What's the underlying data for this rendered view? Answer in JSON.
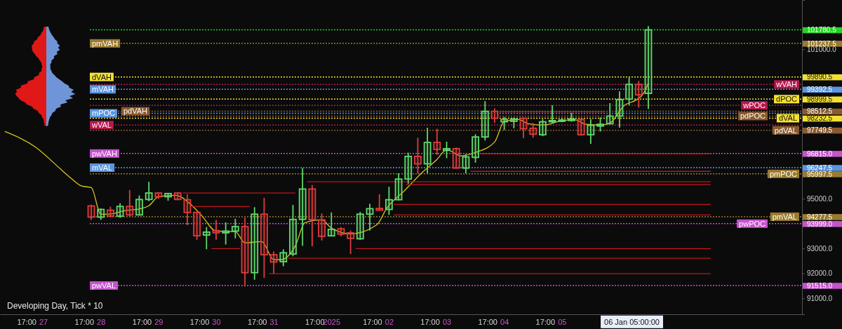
{
  "chart_data": {
    "type": "candlestick",
    "xlim": [
      "2024-12-26T06:00",
      "2025-01-09T04:00"
    ],
    "ylim": [
      90360,
      102980
    ],
    "yticks": [
      {
        "value": 91000,
        "label": "91000.0"
      },
      {
        "value": 91515.0,
        "label": "91515.0"
      },
      {
        "value": 92000,
        "label": "92000.0"
      },
      {
        "value": 93000,
        "label": "93000.0"
      },
      {
        "value": 93999.0,
        "label": "93999.0"
      },
      {
        "value": 94277.5,
        "label": "94277.5"
      },
      {
        "value": 95000,
        "label": "95000.0"
      },
      {
        "value": 95997.5,
        "label": "95997.5"
      },
      {
        "value": 96247.5,
        "label": "96247.5"
      },
      {
        "value": 96815.0,
        "label": "96815.0"
      },
      {
        "value": 97749.5,
        "label": "97749.5"
      },
      {
        "value": 98232.5,
        "label": "98232.5"
      },
      {
        "value": 98512.5,
        "label": "98512.5"
      },
      {
        "value": 98999.5,
        "label": "98999.5"
      },
      {
        "value": 99392.5,
        "label": "99392.5"
      },
      {
        "value": 99890.5,
        "label": "99890.5"
      },
      {
        "value": 101000,
        "label": "101000.0"
      },
      {
        "value": 101237.5,
        "label": "101237.5"
      },
      {
        "value": 101780.5,
        "label": "101780.5"
      }
    ],
    "xticks": [
      {
        "value": "2024-12-26T17:00",
        "label": "17:00"
      },
      {
        "value": "2024-12-27T00:00",
        "label": "27"
      },
      {
        "value": "2024-12-27T17:00",
        "label": "17:00"
      },
      {
        "value": "2024-12-28T00:00",
        "label": "28"
      },
      {
        "value": "2024-12-28T17:00",
        "label": "17:00"
      },
      {
        "value": "2024-12-29T00:00",
        "label": "29"
      },
      {
        "value": "2024-12-29T17:00",
        "label": "17:00"
      },
      {
        "value": "2024-12-30T00:00",
        "label": "30"
      },
      {
        "value": "2024-12-30T17:00",
        "label": "17:00"
      },
      {
        "value": "2024-12-31T00:00",
        "label": "31"
      },
      {
        "value": "2024-12-31T17:00",
        "label": "17:00"
      },
      {
        "value": "2025-01-01T00:00",
        "label": "2025"
      },
      {
        "value": "2025-01-01T17:00",
        "label": "17:00"
      },
      {
        "value": "2025-01-02T00:00",
        "label": "02"
      },
      {
        "value": "2025-01-02T17:00",
        "label": "17:00"
      },
      {
        "value": "2025-01-03T00:00",
        "label": "03"
      },
      {
        "value": "2025-01-03T17:00",
        "label": "17:00"
      },
      {
        "value": "2025-01-04T00:00",
        "label": "04"
      },
      {
        "value": "2025-01-04T17:00",
        "label": "17:00"
      },
      {
        "value": "2025-01-05T00:00",
        "label": "05"
      },
      {
        "value": "2025-01-06T05:00",
        "label": "06 Jan 05:00:00"
      }
    ],
    "x": [
      "2024-12-27T20:00",
      "2024-12-28T00:00",
      "2024-12-28T04:00",
      "2024-12-28T08:00",
      "2024-12-28T12:00",
      "2024-12-28T16:00",
      "2024-12-28T20:00",
      "2024-12-29T00:00",
      "2024-12-29T04:00",
      "2024-12-29T08:00",
      "2024-12-29T12:00",
      "2024-12-29T16:00",
      "2024-12-29T20:00",
      "2024-12-30T00:00",
      "2024-12-30T04:00",
      "2024-12-30T08:00",
      "2024-12-30T12:00",
      "2024-12-30T16:00",
      "2024-12-30T20:00",
      "2024-12-31T00:00",
      "2024-12-31T04:00",
      "2024-12-31T08:00",
      "2024-12-31T12:00",
      "2024-12-31T16:00",
      "2024-12-31T20:00",
      "2025-01-01T00:00",
      "2025-01-01T04:00",
      "2025-01-01T08:00",
      "2025-01-01T12:00",
      "2025-01-01T16:00",
      "2025-01-01T20:00",
      "2025-01-02T00:00",
      "2025-01-02T04:00",
      "2025-01-02T08:00",
      "2025-01-02T12:00",
      "2025-01-02T16:00",
      "2025-01-02T20:00",
      "2025-01-03T00:00",
      "2025-01-03T04:00",
      "2025-01-03T08:00",
      "2025-01-03T12:00",
      "2025-01-03T16:00",
      "2025-01-03T20:00",
      "2025-01-04T00:00",
      "2025-01-04T04:00",
      "2025-01-04T08:00",
      "2025-01-04T12:00",
      "2025-01-04T16:00",
      "2025-01-04T20:00",
      "2025-01-05T00:00",
      "2025-01-05T04:00",
      "2025-01-05T08:00",
      "2025-01-05T12:00",
      "2025-01-05T16:00",
      "2025-01-05T20:00",
      "2025-01-06T00:00",
      "2025-01-06T04:00",
      "2025-01-06T08:00",
      "2025-01-06T12:00"
    ],
    "ohlc": [
      [
        94710,
        94760,
        94150,
        94260
      ],
      [
        94260,
        94610,
        94150,
        94570
      ],
      [
        94540,
        94680,
        94260,
        94300
      ],
      [
        94300,
        94820,
        94240,
        94690
      ],
      [
        94690,
        95350,
        94290,
        94350
      ],
      [
        94350,
        95130,
        94330,
        94970
      ],
      [
        94970,
        95680,
        94900,
        95230
      ],
      [
        95230,
        95250,
        94990,
        95080
      ],
      [
        95080,
        95230,
        94920,
        95210
      ],
      [
        95230,
        95250,
        94940,
        94970
      ],
      [
        94960,
        95180,
        93940,
        94450
      ],
      [
        94450,
        94470,
        93350,
        93510
      ],
      [
        93540,
        93860,
        92970,
        93660
      ],
      [
        93720,
        94150,
        93350,
        93630
      ],
      [
        93630,
        94050,
        93160,
        93700
      ],
      [
        93700,
        94190,
        93410,
        93880
      ],
      [
        93880,
        94240,
        91470,
        92030
      ],
      [
        92030,
        94660,
        91750,
        94380
      ],
      [
        94380,
        95040,
        91820,
        92750
      ],
      [
        92750,
        92880,
        91990,
        92460
      ],
      [
        92470,
        92970,
        92290,
        92830
      ],
      [
        92780,
        94750,
        92690,
        94170
      ],
      [
        94170,
        96230,
        93110,
        95390
      ],
      [
        95390,
        95550,
        93090,
        94160
      ],
      [
        94150,
        94410,
        93320,
        93490
      ],
      [
        93510,
        94450,
        93490,
        93770
      ],
      [
        93790,
        93860,
        93490,
        93580
      ],
      [
        93630,
        93720,
        92780,
        93410
      ],
      [
        93390,
        94470,
        93350,
        94380
      ],
      [
        94380,
        94800,
        93720,
        94600
      ],
      [
        94610,
        95180,
        94520,
        94540
      ],
      [
        94570,
        95480,
        94350,
        94960
      ],
      [
        94960,
        96020,
        94940,
        95790
      ],
      [
        95790,
        96850,
        95600,
        96700
      ],
      [
        96700,
        97450,
        96020,
        96400
      ],
      [
        96400,
        97850,
        96020,
        97260
      ],
      [
        97260,
        97810,
        96760,
        96980
      ],
      [
        96940,
        97290,
        96630,
        97010
      ],
      [
        97010,
        97060,
        96210,
        96230
      ],
      [
        96230,
        96790,
        96020,
        96680
      ],
      [
        96660,
        97590,
        96450,
        97480
      ],
      [
        97480,
        98920,
        97340,
        98510
      ],
      [
        98510,
        98630,
        98040,
        98230
      ],
      [
        98090,
        98280,
        97760,
        98180
      ],
      [
        98110,
        98260,
        97830,
        98200
      ],
      [
        98230,
        98260,
        97430,
        97810
      ],
      [
        97830,
        98040,
        97450,
        97590
      ],
      [
        97570,
        98200,
        97510,
        98090
      ],
      [
        98090,
        98750,
        98040,
        98140
      ],
      [
        98110,
        98230,
        98070,
        98160
      ],
      [
        98140,
        98450,
        98090,
        98200
      ],
      [
        98180,
        98230,
        97530,
        97570
      ],
      [
        97570,
        98200,
        97200,
        97950
      ],
      [
        97920,
        98260,
        97700,
        97990
      ],
      [
        98010,
        98840,
        97990,
        98320
      ],
      [
        98320,
        99310,
        97850,
        98980
      ],
      [
        99000,
        99870,
        98750,
        99590
      ],
      [
        99590,
        99730,
        98660,
        99170
      ],
      [
        99230,
        101930,
        98610,
        101780
      ]
    ],
    "colors": [
      "#e23b3b",
      "#5fd96b",
      "#e23b3b",
      "#5fd96b",
      "#e23b3b",
      "#5fd96b",
      "#5fd96b",
      "#e23b3b",
      "#5fd96b",
      "#e23b3b",
      "#e23b3b",
      "#e23b3b",
      "#5fd96b",
      "#e23b3b",
      "#5fd96b",
      "#5fd96b",
      "#e23b3b",
      "#5fd96b",
      "#e23b3b",
      "#e23b3b",
      "#5fd96b",
      "#5fd96b",
      "#5fd96b",
      "#e23b3b",
      "#e23b3b",
      "#5fd96b",
      "#e23b3b",
      "#e23b3b",
      "#5fd96b",
      "#5fd96b",
      "#e23b3b",
      "#5fd96b",
      "#5fd96b",
      "#5fd96b",
      "#e23b3b",
      "#5fd96b",
      "#e23b3b",
      "#5fd96b",
      "#e23b3b",
      "#5fd96b",
      "#5fd96b",
      "#5fd96b",
      "#e23b3b",
      "#5fd96b",
      "#5fd96b",
      "#e23b3b",
      "#e23b3b",
      "#5fd96b",
      "#5fd96b",
      "#5fd96b",
      "#5fd96b",
      "#e23b3b",
      "#5fd96b",
      "#5fd96b",
      "#5fd96b",
      "#5fd96b",
      "#5fd96b",
      "#e23b3b",
      "#5fd96b"
    ],
    "series": [
      {
        "type": "line",
        "color": "#d6c41c",
        "x": [
          "2024-12-26T08:00",
          "2024-12-26T21:00",
          "2024-12-27T07:00",
          "2024-12-27T11:00",
          "2024-12-27T16:00",
          "2024-12-27T20:00",
          "2024-12-28T00:00",
          "2024-12-28T03:00",
          "2024-12-28T10:00",
          "2024-12-28T17:00",
          "2024-12-28T20:00",
          "2024-12-29T00:00",
          "2024-12-29T07:00",
          "2024-12-29T14:00",
          "2024-12-29T18:00",
          "2024-12-30T00:00",
          "2024-12-30T08:00",
          "2024-12-30T12:00",
          "2024-12-30T19:00",
          "2024-12-31T00:00",
          "2024-12-31T03:00",
          "2024-12-31T09:00",
          "2024-12-31T13:00",
          "2024-12-31T20:00",
          "2025-01-01T00:00",
          "2025-01-01T08:00",
          "2025-01-01T19:00",
          "2025-01-01T23:00",
          "2025-01-02T06:00",
          "2025-01-02T14:00",
          "2025-01-02T20:00",
          "2025-01-03T00:00",
          "2025-01-03T06:00",
          "2025-01-03T12:00",
          "2025-01-03T20:00",
          "2025-01-04T00:00",
          "2025-01-04T06:00",
          "2025-01-04T10:00",
          "2025-01-04T16:00",
          "2025-01-05T00:00",
          "2025-01-05T05:00",
          "2025-01-05T10:00",
          "2025-01-05T16:00",
          "2025-01-05T20:00",
          "2025-01-06T02:00",
          "2025-01-06T07:00",
          "2025-01-06T10:00",
          "2025-01-06T12:00"
        ],
        "values": [
          97700,
          97060,
          96210,
          95870,
          95510,
          95450,
          94380,
          94380,
          94520,
          94610,
          94720,
          95080,
          95140,
          94720,
          94320,
          93700,
          93680,
          93230,
          93280,
          92550,
          92550,
          93110,
          94040,
          94150,
          93820,
          93590,
          93960,
          94610,
          95280,
          96070,
          96580,
          96970,
          96720,
          96860,
          97280,
          98100,
          98180,
          98010,
          97960,
          98130,
          98180,
          97990,
          97960,
          98040,
          98750,
          98970,
          99230,
          99650
        ]
      },
      {
        "type": "line",
        "color": "#c0141c",
        "x": [
          "2025-01-03T22:00",
          "2025-01-05T18:00"
        ],
        "values": [
          98490,
          98490
        ]
      },
      {
        "type": "line",
        "color": "#c0141c",
        "x": [
          "2025-01-03T14:00",
          "2025-01-07T14:00"
        ],
        "values": [
          96800,
          96800
        ]
      },
      {
        "type": "line",
        "color": "#c0141c",
        "x": [
          "2025-01-03T10:00",
          "2025-01-07T14:00"
        ],
        "values": [
          96100,
          96100
        ]
      },
      {
        "type": "line",
        "color": "#c0141c",
        "x": [
          "2024-12-31T14:00",
          "2025-01-07T14:00"
        ],
        "values": [
          95680,
          95680
        ]
      },
      {
        "type": "line",
        "color": "#c0141c",
        "x": [
          "2025-01-02T07:00",
          "2025-01-07T14:00"
        ],
        "values": [
          95560,
          95560
        ]
      },
      {
        "type": "line",
        "color": "#c0141c",
        "x": [
          "2024-12-29T10:00",
          "2024-12-31T09:00"
        ],
        "values": [
          95230,
          95230
        ]
      },
      {
        "type": "line",
        "color": "#c0141c",
        "x": [
          "2025-01-02T02:00",
          "2025-01-07T14:00"
        ],
        "values": [
          94770,
          94770
        ]
      },
      {
        "type": "line",
        "color": "#c0141c",
        "x": [
          "2024-12-29T14:00",
          "2024-12-30T14:00"
        ],
        "values": [
          94690,
          94690
        ]
      },
      {
        "type": "line",
        "color": "#c0141c",
        "x": [
          "2025-01-02T02:00",
          "2025-01-07T14:00"
        ],
        "values": [
          94350,
          94350
        ]
      },
      {
        "type": "line",
        "color": "#c0141c",
        "x": [
          "2024-12-29T22:00",
          "2024-12-30T10:00"
        ],
        "values": [
          93000,
          93000
        ]
      },
      {
        "type": "line",
        "color": "#c0141c",
        "x": [
          "2025-01-01T10:00",
          "2025-01-07T14:00"
        ],
        "values": [
          93000,
          93000
        ]
      },
      {
        "type": "line",
        "color": "#c0141c",
        "x": [
          "2024-12-31T06:00",
          "2025-01-07T14:00"
        ],
        "values": [
          92610,
          92610
        ]
      },
      {
        "type": "line",
        "color": "#c0141c",
        "x": [
          "2024-12-30T22:00",
          "2025-01-07T14:00"
        ],
        "values": [
          91990,
          91990
        ]
      }
    ],
    "ref_lines": [
      {
        "axis": "y",
        "value": 101780.5,
        "label": null,
        "color": "#22d422",
        "line_style": "dotted"
      },
      {
        "axis": "y",
        "value": 101237.5,
        "label": "pmVAH",
        "color": "#9a7b2e",
        "line_style": "dotted"
      },
      {
        "axis": "y",
        "value": 99890.5,
        "label": "dVAH",
        "color": "#f2e033",
        "line_style": "dotted"
      },
      {
        "axis": "y",
        "value": 99392.5,
        "label": "mVAH",
        "color": "#5b95df",
        "line_style": "dotted"
      },
      {
        "axis": "y",
        "value": 98999.5,
        "label": "dPOC",
        "color": "#f2e033",
        "line_style": "dotted"
      },
      {
        "axis": "y",
        "value": 98430,
        "label": "mPOC",
        "color": "#5b95df",
        "line_style": "dotted"
      },
      {
        "axis": "y",
        "value": 98232.5,
        "label": "dVAL",
        "color": "#f2e033",
        "line_style": "dotted"
      },
      {
        "axis": "y",
        "value": 96247.5,
        "label": "mVAL",
        "color": "#5b95df",
        "line_style": "dotted"
      },
      {
        "axis": "y",
        "value": 95997.5,
        "label": "pmPOC",
        "color": "#9a7b2e",
        "line_style": "dotted"
      },
      {
        "axis": "y",
        "value": 94277.5,
        "label": "pmVAL",
        "color": "#9a7b2e",
        "line_style": "dotted"
      },
      {
        "axis": "y",
        "value": 99590,
        "label": "wVAH",
        "color": "#b5184e",
        "line_style": "dotted"
      },
      {
        "axis": "y",
        "value": 98750,
        "label": "wPOC",
        "color": "#b5184e",
        "line_style": "dotted"
      },
      {
        "axis": "y",
        "value": 98512.5,
        "label": "pdVAH",
        "color": "#8a5a2e",
        "line_style": "dotted"
      },
      {
        "axis": "y",
        "value": 98320,
        "label": "pdPOC",
        "color": "#8a5a2e",
        "line_style": "dotted"
      },
      {
        "axis": "y",
        "value": 97960,
        "label": "wVAL",
        "color": "#b5184e",
        "line_style": "dotted"
      },
      {
        "axis": "y",
        "value": 97749.5,
        "label": "pdVAL",
        "color": "#8a5a2e",
        "line_style": "dotted"
      },
      {
        "axis": "y",
        "value": 96815.0,
        "label": "pwVAH",
        "color": "#c454cc",
        "line_style": "dotted"
      },
      {
        "axis": "y",
        "value": 93999.0,
        "label": "pwPOC",
        "color": "#c454cc",
        "line_style": "dotted"
      },
      {
        "axis": "y",
        "value": 91515.0,
        "label": "pwVAL",
        "color": "#c454cc",
        "line_style": "dotted"
      }
    ],
    "annotations": [
      "Developing Day, Tick * 10"
    ]
  }
}
